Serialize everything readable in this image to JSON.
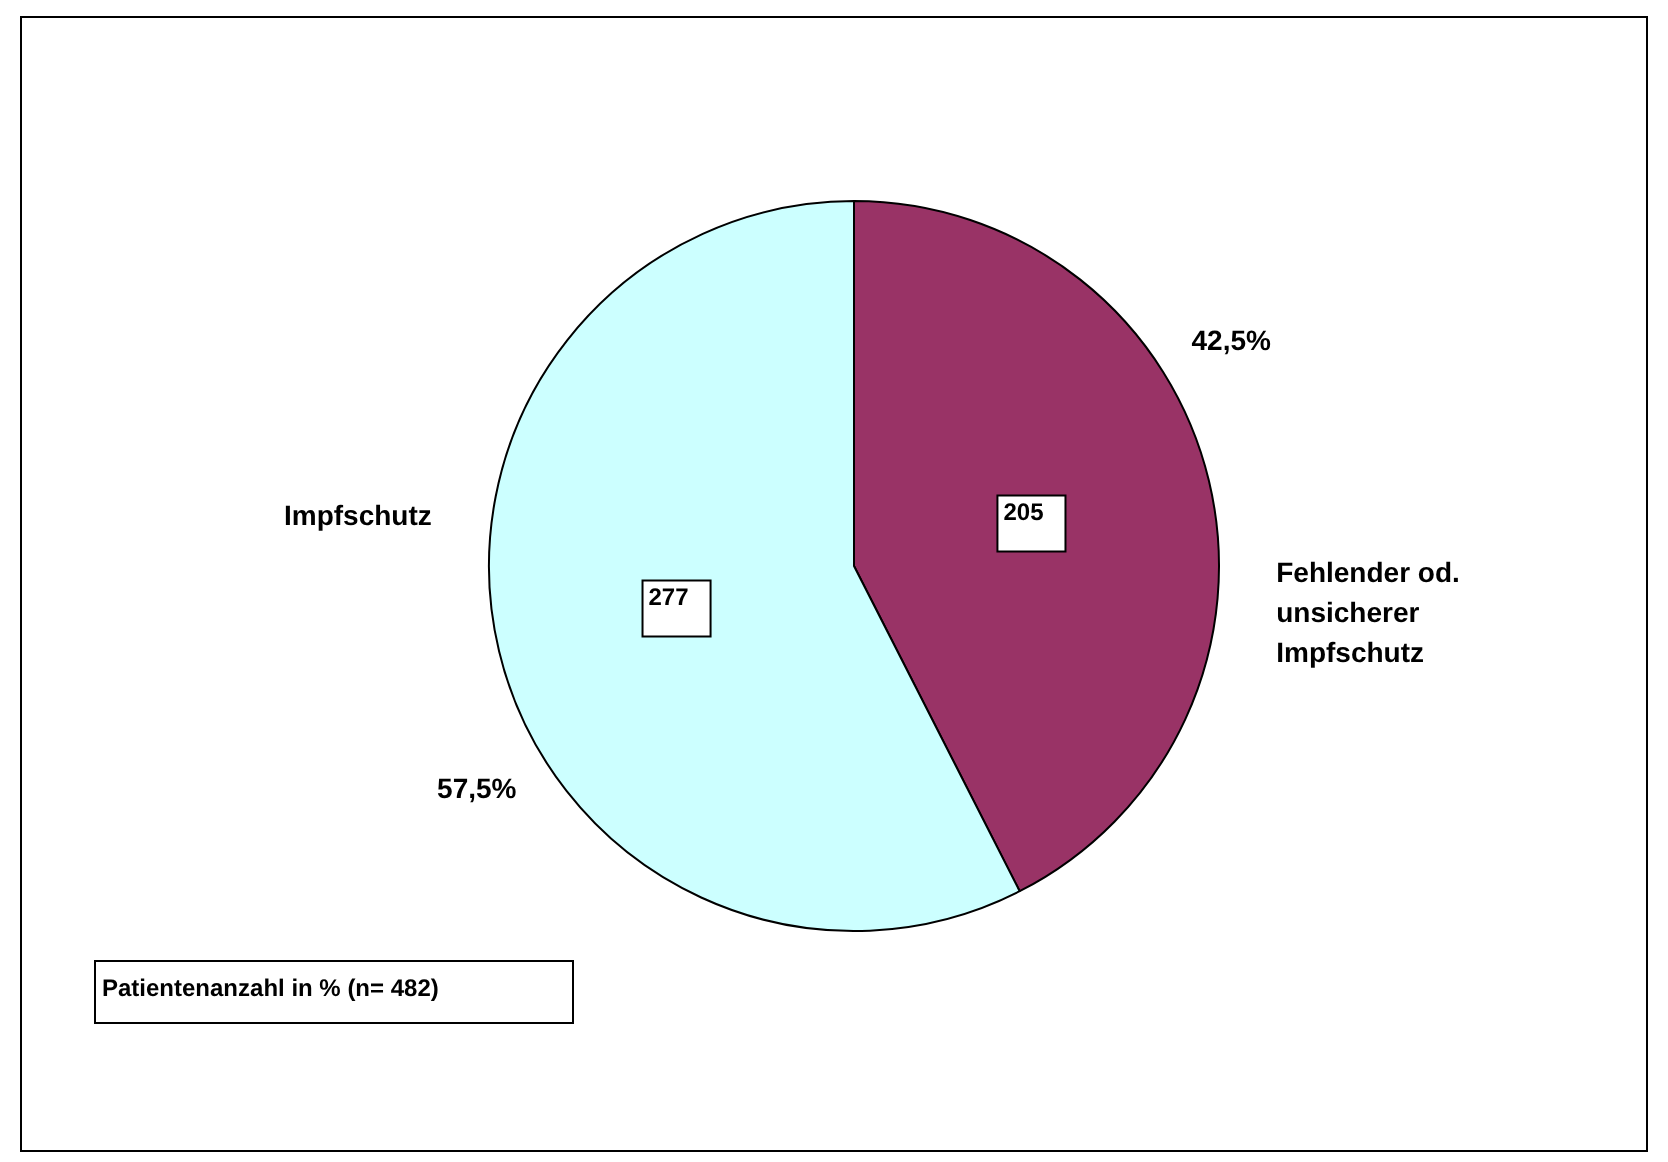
{
  "chart_data": {
    "type": "pie",
    "categories": [
      "Fehlender od. unsicherer Impfschutz",
      "Impfschutz"
    ],
    "values": [
      42.5,
      57.5
    ],
    "colors": [
      "#993366",
      "#ccffff"
    ],
    "value_labels": [
      "42,5%",
      "57,5%"
    ],
    "legend": false,
    "annotations": [
      "Patientenanzahl in % (n= 482)",
      "205",
      "277"
    ]
  }
}
